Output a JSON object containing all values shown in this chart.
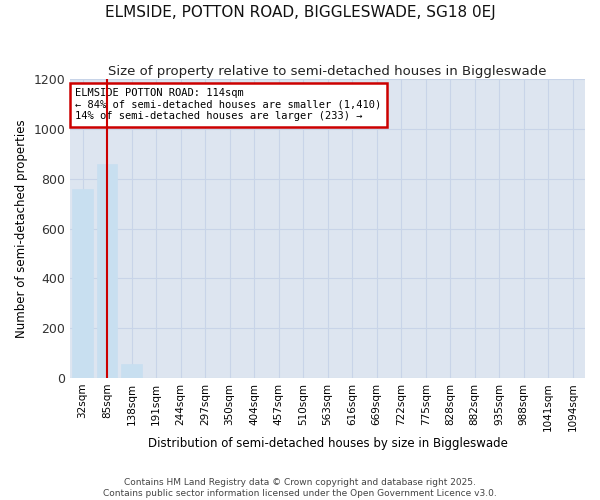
{
  "title": "ELMSIDE, POTTON ROAD, BIGGLESWADE, SG18 0EJ",
  "subtitle": "Size of property relative to semi-detached houses in Biggleswade",
  "xlabel": "Distribution of semi-detached houses by size in Biggleswade",
  "ylabel": "Number of semi-detached properties",
  "categories": [
    "32sqm",
    "85sqm",
    "138sqm",
    "191sqm",
    "244sqm",
    "297sqm",
    "350sqm",
    "404sqm",
    "457sqm",
    "510sqm",
    "563sqm",
    "616sqm",
    "669sqm",
    "722sqm",
    "775sqm",
    "828sqm",
    "882sqm",
    "935sqm",
    "988sqm",
    "1041sqm",
    "1094sqm"
  ],
  "values": [
    760,
    860,
    55,
    0,
    0,
    0,
    0,
    0,
    0,
    0,
    0,
    0,
    0,
    0,
    0,
    0,
    0,
    0,
    0,
    0,
    0
  ],
  "bar_color": "#c8dff0",
  "bar_edge_color": "#c8dff0",
  "property_line_x": 1.0,
  "annotation_title": "ELMSIDE POTTON ROAD: 114sqm",
  "annotation_line1": "← 84% of semi-detached houses are smaller (1,410)",
  "annotation_line2": "14% of semi-detached houses are larger (233) →",
  "vline_color": "#cc0000",
  "annotation_box_color": "#cc0000",
  "ylim": [
    0,
    1200
  ],
  "yticks": [
    0,
    200,
    400,
    600,
    800,
    1000,
    1200
  ],
  "grid_color": "#c8d4e8",
  "bg_color": "#dde5f0",
  "footer_line1": "Contains HM Land Registry data © Crown copyright and database right 2025.",
  "footer_line2": "Contains public sector information licensed under the Open Government Licence v3.0."
}
